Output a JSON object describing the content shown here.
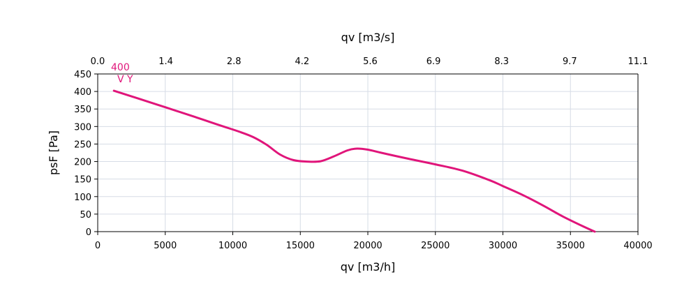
{
  "chart_data": {
    "type": "line",
    "title": "",
    "xlabel": "qv [m3/h]",
    "ylabel": "psF [Pa]",
    "x2label": "qv [m3/s]",
    "xlim": [
      0,
      40000
    ],
    "ylim": [
      0,
      450
    ],
    "x2lim": [
      0,
      11.1
    ],
    "xticks": [
      0,
      5000,
      10000,
      15000,
      20000,
      25000,
      30000,
      35000,
      40000
    ],
    "yticks": [
      0,
      50,
      100,
      150,
      200,
      250,
      300,
      350,
      400,
      450
    ],
    "x2ticks": [
      0.0,
      1.4,
      2.8,
      4.2,
      5.6,
      6.9,
      8.3,
      9.7,
      11.1
    ],
    "x2tick_labels": [
      "0.0",
      "1.4",
      "2.8",
      "4.2",
      "5.6",
      "6.9",
      "8.3",
      "9.7",
      "11.1"
    ],
    "grid": true,
    "color": "#e0157a",
    "series": [
      {
        "name": "",
        "x": [
          1200,
          3000,
          5000,
          7000,
          9000,
          10500,
          11500,
          12500,
          13500,
          14500,
          15500,
          16500,
          17500,
          18500,
          19200,
          20000,
          21000,
          23000,
          25000,
          27000,
          29000,
          30000,
          31500,
          33000,
          34500,
          36000,
          36800
        ],
        "y": [
          402,
          380,
          355,
          330,
          304,
          285,
          270,
          248,
          220,
          204,
          200,
          201,
          215,
          232,
          237,
          234,
          225,
          208,
          192,
          174,
          147,
          130,
          104,
          74,
          42,
          14,
          0
        ]
      }
    ],
    "annotations": [
      {
        "text": "400",
        "x": 1200,
        "y": 402
      },
      {
        "text": "V Y",
        "x": 1200,
        "y": 402
      }
    ]
  }
}
